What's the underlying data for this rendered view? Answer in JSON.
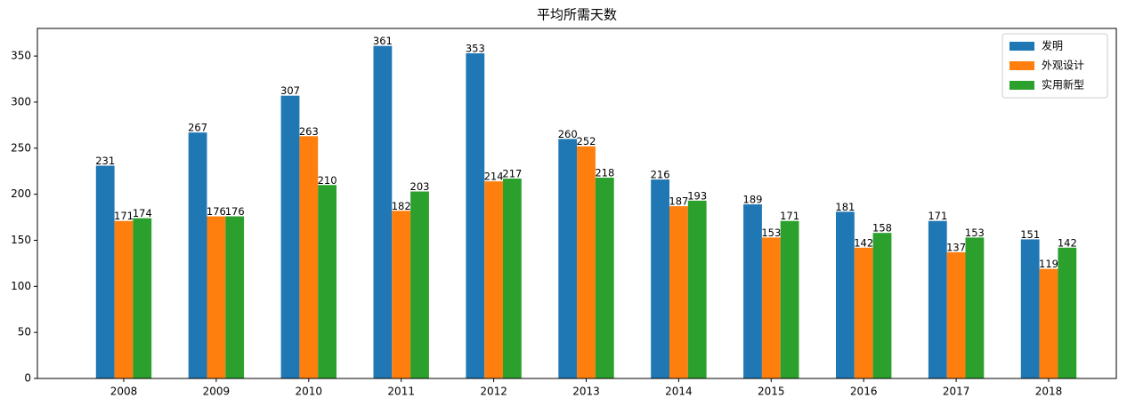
{
  "chart_data": {
    "type": "bar",
    "title": "平均所需天数",
    "categories": [
      "2008",
      "2009",
      "2010",
      "2011",
      "2012",
      "2013",
      "2014",
      "2015",
      "2016",
      "2017",
      "2018"
    ],
    "series": [
      {
        "name": "发明",
        "color": "#1f77b4",
        "values": [
          231,
          267,
          307,
          361,
          353,
          260,
          216,
          189,
          181,
          171,
          151
        ]
      },
      {
        "name": "外观设计",
        "color": "#ff7f0e",
        "values": [
          171,
          176,
          263,
          182,
          214,
          252,
          187,
          153,
          142,
          137,
          119
        ]
      },
      {
        "name": "实用新型",
        "color": "#2ca02c",
        "values": [
          174,
          176,
          210,
          203,
          217,
          218,
          193,
          171,
          158,
          153,
          142
        ]
      }
    ],
    "ylim": [
      0,
      380
    ],
    "yticks": [
      0,
      50,
      100,
      150,
      200,
      250,
      300,
      350
    ],
    "legend": "upper right",
    "value_labels_shown": true
  }
}
